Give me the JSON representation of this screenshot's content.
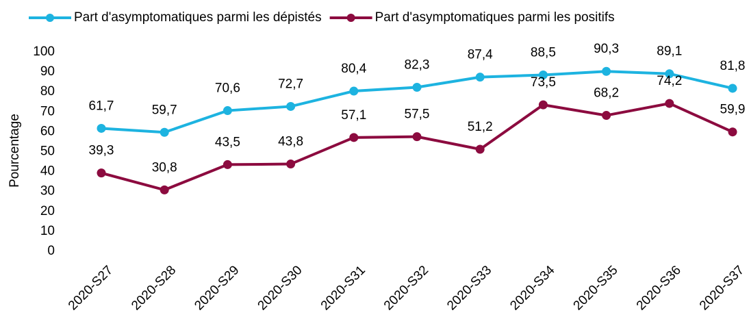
{
  "chart_data": {
    "type": "line",
    "y_label": "Pourcentage",
    "categories": [
      "2020-S27",
      "2020-S28",
      "2020-S29",
      "2020-S30",
      "2020-S31",
      "2020-S32",
      "2020-S33",
      "2020-S34",
      "2020-S35",
      "2020-S36",
      "2020-S37"
    ],
    "series": [
      {
        "name": "Part d'asymptomatiques parmi les dépistés",
        "color": "#1db3e0",
        "values": [
          61.7,
          59.7,
          70.6,
          72.7,
          80.4,
          82.3,
          87.4,
          88.5,
          90.3,
          89.1,
          81.8
        ],
        "value_labels": [
          "61,7",
          "59,7",
          "70,6",
          "72,7",
          "80,4",
          "82,3",
          "87,4",
          "88,5",
          "90,3",
          "89,1",
          "81,8"
        ]
      },
      {
        "name": "Part d'asymptomatiques parmi les positifs",
        "color": "#8c0b3f",
        "values": [
          39.3,
          30.8,
          43.5,
          43.8,
          57.1,
          57.5,
          51.2,
          73.5,
          68.2,
          74.2,
          59.9
        ],
        "value_labels": [
          "39,3",
          "30,8",
          "43,5",
          "43,8",
          "57,1",
          "57,5",
          "51,2",
          "73,5",
          "68,2",
          "74,2",
          "59,9"
        ]
      }
    ],
    "ylim": [
      0,
      100
    ],
    "yticks": [
      0,
      10,
      20,
      30,
      40,
      50,
      60,
      70,
      80,
      90,
      100
    ],
    "grid": false,
    "legend": "top"
  }
}
